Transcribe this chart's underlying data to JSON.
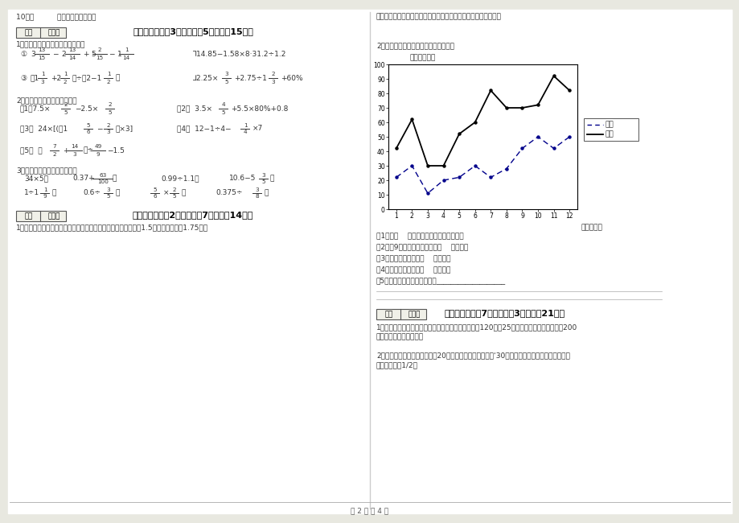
{
  "bg_color": "#e8e8e0",
  "page_color": "white",
  "income": [
    42,
    62,
    30,
    30,
    52,
    60,
    82,
    70,
    70,
    72,
    92,
    82
  ],
  "expenditure": [
    22,
    30,
    11,
    20,
    22,
    30,
    22,
    28,
    42,
    50,
    42,
    50
  ],
  "months": [
    1,
    2,
    3,
    4,
    5,
    6,
    7,
    8,
    9,
    10,
    11,
    12
  ],
  "income_color": "#000000",
  "expenditure_color": "#00008B",
  "chart_ylabel": "金额（万元）",
  "chart_xlabel": "月份（月）",
  "yticks": [
    0,
    10,
    20,
    30,
    40,
    50,
    60,
    70,
    80,
    90,
    100
  ],
  "footer_text": "第 2 页 共 4 页"
}
